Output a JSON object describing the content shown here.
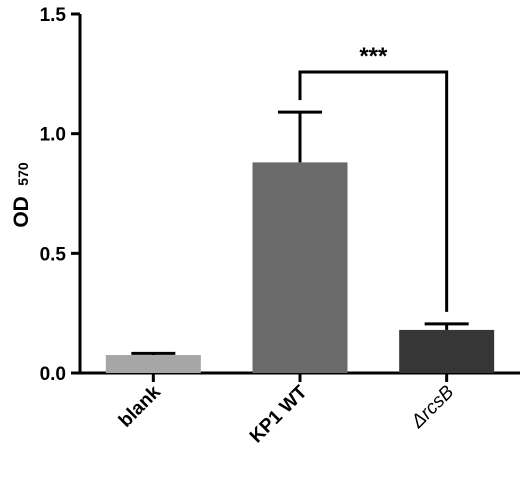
{
  "chart_data": {
    "type": "bar",
    "categories": [
      "blank",
      "KP1 WT",
      "ΔrcsB"
    ],
    "values": [
      0.075,
      0.88,
      0.18
    ],
    "errors": [
      0.007,
      0.21,
      0.025
    ],
    "colors": [
      "#a6a6a6",
      "#6b6b6b",
      "#363636"
    ],
    "title": "",
    "xlabel": "",
    "ylabel": "OD",
    "ylabel_subscript": "570",
    "ylim": [
      0,
      1.5
    ],
    "yticks": [
      "0.0",
      "0.5",
      "1.0",
      "1.5"
    ],
    "grid": false,
    "annotation": {
      "text": "***",
      "between": [
        "KP1 WT",
        "ΔrcsB"
      ]
    }
  }
}
